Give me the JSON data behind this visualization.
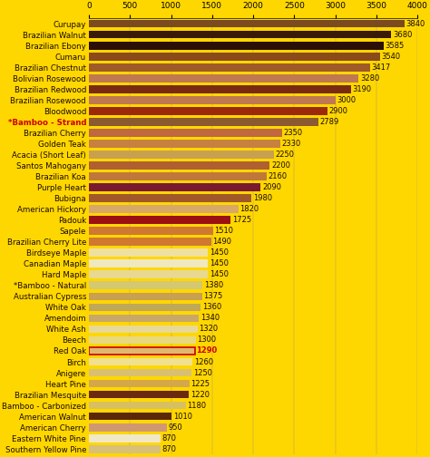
{
  "categories": [
    "Curupay",
    "Brazilian Walnut",
    "Brazilian Ebony",
    "Cumaru",
    "Brazilian Chestnut",
    "Bolivian Rosewood",
    "Brazilian Redwood",
    "Brazilian Rosewood",
    "Bloodwood",
    "*Bamboo - Strand",
    "Brazilian Cherry",
    "Golden Teak",
    "Acacia (Short Leaf)",
    "Santos Mahogany",
    "Brazilian Koa",
    "Purple Heart",
    "Bubigna",
    "American Hickory",
    "Padouk",
    "Sapele",
    "Brazilian Cherry Lite",
    "Birdseye Maple",
    "Canadian Maple",
    "Hard Maple",
    "*Bamboo - Natural",
    "Australian Cypress",
    "White Oak",
    "Amendoim",
    "White Ash",
    "Beech",
    "Red Oak",
    "Birch",
    "Anigere",
    "Heart Pine",
    "Brazilian Mesquite",
    "Bamboo - Carbonized",
    "American Walnut",
    "American Cherry",
    "Eastern White Pine",
    "Southern Yellow Pine"
  ],
  "values": [
    3840,
    3680,
    3585,
    3540,
    3417,
    3280,
    3190,
    3000,
    2900,
    2789,
    2350,
    2330,
    2250,
    2200,
    2160,
    2090,
    1980,
    1820,
    1725,
    1510,
    1490,
    1450,
    1450,
    1450,
    1380,
    1375,
    1360,
    1340,
    1320,
    1300,
    1290,
    1260,
    1250,
    1225,
    1220,
    1180,
    1010,
    950,
    870,
    870
  ],
  "bar_colors": [
    "#7B4A1E",
    "#3A1A08",
    "#2A1006",
    "#8B4A1A",
    "#A05A28",
    "#C07850",
    "#7A2A10",
    "#C07850",
    "#9B2A0A",
    "#8B5A30",
    "#C06840",
    "#C88040",
    "#C8A050",
    "#B06030",
    "#C07838",
    "#7A1A30",
    "#A05828",
    "#D8A868",
    "#9B1010",
    "#D07830",
    "#D07830",
    "#F0E0A0",
    "#F0E8C0",
    "#E8D890",
    "#D4C870",
    "#C8A050",
    "#C0A858",
    "#C8A868",
    "#E8D898",
    "#E8D880",
    "#E0B870",
    "#F0E090",
    "#D8C070",
    "#D4A848",
    "#6B2A10",
    "#D8C060",
    "#5A2808",
    "#D09870",
    "#F0E8C8",
    "#D8C078"
  ],
  "highlight_index": 30,
  "highlight_label_color": "#CC0000",
  "highlight_value_color": "#CC0000",
  "highlight_box_color": "#CC0000",
  "background_color": "#FFD700",
  "bar_height": 0.72,
  "xlim": [
    0,
    4000
  ],
  "xticks": [
    0,
    500,
    1000,
    1500,
    2000,
    2500,
    3000,
    3500,
    4000
  ],
  "label_fontsize": 6.2,
  "value_fontsize": 6.0,
  "tick_fontsize": 6.5
}
